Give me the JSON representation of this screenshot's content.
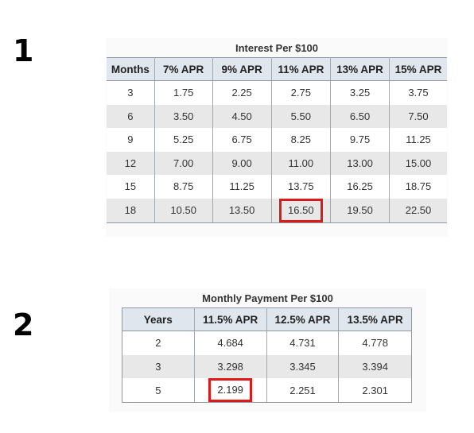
{
  "section1": {
    "number": "1",
    "title": "Interest Per $100",
    "headers": [
      "Months",
      "7% APR",
      "9% APR",
      "11% APR",
      "13% APR",
      "15% APR"
    ],
    "rows": [
      [
        "3",
        "1.75",
        "2.25",
        "2.75",
        "3.25",
        "3.75"
      ],
      [
        "6",
        "3.50",
        "4.50",
        "5.50",
        "6.50",
        "7.50"
      ],
      [
        "9",
        "5.25",
        "6.75",
        "8.25",
        "9.75",
        "11.25"
      ],
      [
        "12",
        "7.00",
        "9.00",
        "11.00",
        "13.00",
        "15.00"
      ],
      [
        "15",
        "8.75",
        "11.25",
        "13.75",
        "16.25",
        "18.75"
      ],
      [
        "18",
        "10.50",
        "13.50",
        "16.50",
        "19.50",
        "22.50"
      ]
    ],
    "highlight": {
      "row": 5,
      "col": 3
    },
    "highlight_color": "#dd1a1a"
  },
  "section2": {
    "number": "2",
    "title": "Monthly Payment Per $100",
    "headers": [
      "Years",
      "11.5% APR",
      "12.5% APR",
      "13.5% APR"
    ],
    "rows": [
      [
        "2",
        "4.684",
        "4.731",
        "4.778"
      ],
      [
        "3",
        "3.298",
        "3.345",
        "3.394"
      ],
      [
        "5",
        "2.199",
        "2.251",
        "2.301"
      ]
    ],
    "highlight": {
      "row": 2,
      "col": 1
    },
    "highlight_color": "#dd1a1a"
  }
}
